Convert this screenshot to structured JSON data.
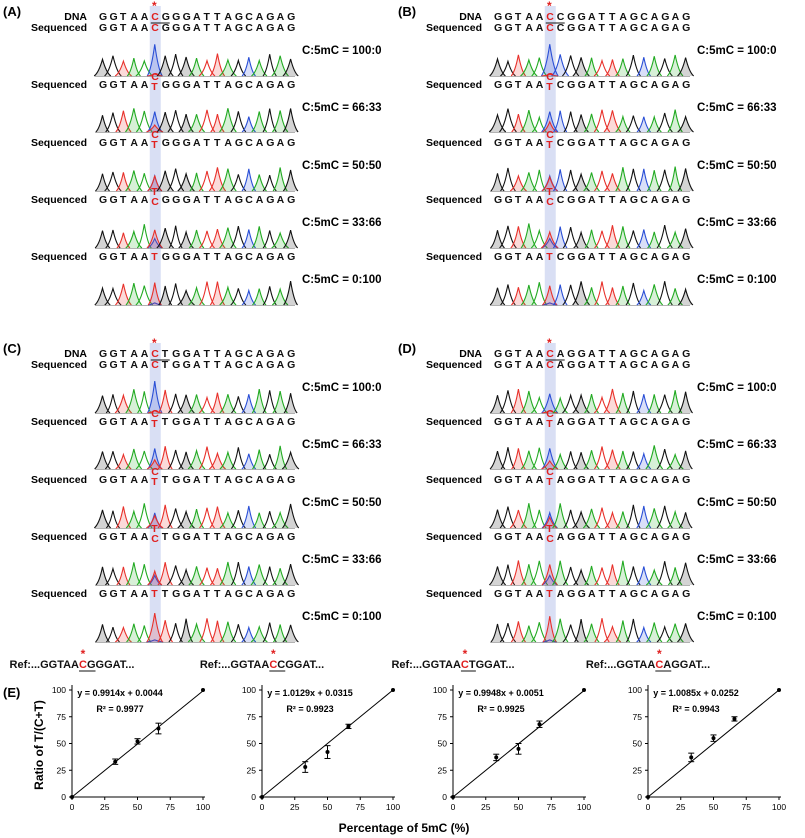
{
  "figure": {
    "panel_labels": [
      "(A)",
      "(B)",
      "(C)",
      "(D)",
      "(E)"
    ],
    "dna_label": "DNA",
    "sequenced_label": "Sequenced",
    "star": "*",
    "base_colors": {
      "A": "#22aa22",
      "C": "#2a4fd6",
      "G": "#111111",
      "T": "#e8302a"
    },
    "highlight_color": "#aab8e6",
    "red": "#e02020"
  },
  "sequencing_panels": [
    {
      "label": "(A)",
      "reference": [
        "G",
        "G",
        "T",
        "A",
        "A",
        "C",
        "G",
        "G",
        "G",
        "A",
        "T",
        "T",
        "A",
        "G",
        "C",
        "A",
        "G",
        "A",
        "G"
      ],
      "target_index": 5,
      "underline": [
        5,
        6
      ],
      "rows": [
        {
          "sequence": [
            "G",
            "G",
            "T",
            "A",
            "A",
            "C",
            "G",
            "G",
            "G",
            "A",
            "T",
            "T",
            "A",
            "G",
            "C",
            "A",
            "G",
            "A",
            "G"
          ],
          "call_top": "C",
          "call_bottom": "",
          "ratio": "C:5mC = 100:0",
          "ratio_c": 1.0
        },
        {
          "sequence": [
            "G",
            "G",
            "T",
            "A",
            "A",
            "C",
            "G",
            "G",
            "G",
            "A",
            "T",
            "T",
            "A",
            "G",
            "C",
            "A",
            "G",
            "A",
            "G"
          ],
          "call_top": "C",
          "call_bottom": "T",
          "ratio": "C:5mC = 66:33",
          "ratio_c": 0.67
        },
        {
          "sequence": [
            "G",
            "G",
            "T",
            "A",
            "A",
            "C",
            "G",
            "G",
            "G",
            "A",
            "T",
            "T",
            "A",
            "G",
            "C",
            "A",
            "G",
            "A",
            "G"
          ],
          "call_top": "C",
          "call_bottom": "T",
          "ratio": "C:5mC = 50:50",
          "ratio_c": 0.5
        },
        {
          "sequence": [
            "G",
            "G",
            "T",
            "A",
            "A",
            "C",
            "G",
            "G",
            "G",
            "A",
            "T",
            "T",
            "A",
            "G",
            "C",
            "A",
            "G",
            "A",
            "G"
          ],
          "call_top": "T",
          "call_bottom": "C",
          "ratio": "C:5mC = 33:66",
          "ratio_c": 0.33
        },
        {
          "sequence": [
            "G",
            "G",
            "T",
            "A",
            "A",
            "T",
            "G",
            "G",
            "G",
            "A",
            "T",
            "T",
            "A",
            "G",
            "C",
            "A",
            "G",
            "A",
            "G"
          ],
          "call_top": "T",
          "call_bottom": "",
          "ratio": "C:5mC = 0:100",
          "ratio_c": 0.0
        }
      ]
    },
    {
      "label": "(B)",
      "reference": [
        "G",
        "G",
        "T",
        "A",
        "A",
        "C",
        "C",
        "G",
        "G",
        "A",
        "T",
        "T",
        "A",
        "G",
        "C",
        "A",
        "G",
        "A",
        "G"
      ],
      "target_index": 5,
      "underline": [
        5,
        6
      ],
      "rows": [
        {
          "sequence": [
            "G",
            "G",
            "T",
            "A",
            "A",
            "C",
            "C",
            "G",
            "G",
            "A",
            "T",
            "T",
            "A",
            "G",
            "C",
            "A",
            "G",
            "A",
            "G"
          ],
          "call_top": "C",
          "call_bottom": "",
          "ratio": "C:5mC = 100:0",
          "ratio_c": 1.0
        },
        {
          "sequence": [
            "G",
            "G",
            "T",
            "A",
            "A",
            "C",
            "C",
            "G",
            "G",
            "A",
            "T",
            "T",
            "A",
            "G",
            "C",
            "A",
            "G",
            "A",
            "G"
          ],
          "call_top": "C",
          "call_bottom": "T",
          "ratio": "C:5mC = 66:33",
          "ratio_c": 0.67
        },
        {
          "sequence": [
            "G",
            "G",
            "T",
            "A",
            "A",
            "C",
            "C",
            "G",
            "G",
            "A",
            "T",
            "T",
            "A",
            "G",
            "C",
            "A",
            "G",
            "A",
            "G"
          ],
          "call_top": "C",
          "call_bottom": "T",
          "ratio": "C:5mC = 50:50",
          "ratio_c": 0.5
        },
        {
          "sequence": [
            "G",
            "G",
            "T",
            "A",
            "A",
            "C",
            "C",
            "G",
            "G",
            "A",
            "T",
            "T",
            "A",
            "G",
            "C",
            "A",
            "G",
            "A",
            "G"
          ],
          "call_top": "T",
          "call_bottom": "C",
          "ratio": "C:5mC = 33:66",
          "ratio_c": 0.33
        },
        {
          "sequence": [
            "G",
            "G",
            "T",
            "A",
            "A",
            "T",
            "C",
            "G",
            "G",
            "A",
            "T",
            "T",
            "A",
            "G",
            "C",
            "A",
            "G",
            "A",
            "G"
          ],
          "call_top": "T",
          "call_bottom": "",
          "ratio": "C:5mC = 0:100",
          "ratio_c": 0.0
        }
      ]
    },
    {
      "label": "(C)",
      "reference": [
        "G",
        "G",
        "T",
        "A",
        "A",
        "C",
        "T",
        "G",
        "G",
        "A",
        "T",
        "T",
        "A",
        "G",
        "C",
        "A",
        "G",
        "A",
        "G"
      ],
      "target_index": 5,
      "underline": [
        5,
        6
      ],
      "rows": [
        {
          "sequence": [
            "G",
            "G",
            "T",
            "A",
            "A",
            "C",
            "T",
            "G",
            "G",
            "A",
            "T",
            "T",
            "A",
            "G",
            "C",
            "A",
            "G",
            "A",
            "G"
          ],
          "call_top": "C",
          "call_bottom": "",
          "ratio": "C:5mC = 100:0",
          "ratio_c": 1.0
        },
        {
          "sequence": [
            "G",
            "G",
            "T",
            "A",
            "A",
            "C",
            "T",
            "G",
            "G",
            "A",
            "T",
            "T",
            "A",
            "G",
            "C",
            "A",
            "G",
            "A",
            "G"
          ],
          "call_top": "C",
          "call_bottom": "T",
          "ratio": "C:5mC = 66:33",
          "ratio_c": 0.67
        },
        {
          "sequence": [
            "G",
            "G",
            "T",
            "A",
            "A",
            "C",
            "T",
            "G",
            "G",
            "A",
            "T",
            "T",
            "A",
            "G",
            "C",
            "A",
            "G",
            "A",
            "G"
          ],
          "call_top": "C",
          "call_bottom": "T",
          "ratio": "C:5mC = 50:50",
          "ratio_c": 0.5
        },
        {
          "sequence": [
            "G",
            "G",
            "T",
            "A",
            "A",
            "C",
            "T",
            "G",
            "G",
            "A",
            "T",
            "T",
            "A",
            "G",
            "C",
            "A",
            "G",
            "A",
            "G"
          ],
          "call_top": "T",
          "call_bottom": "C",
          "ratio": "C:5mC = 33:66",
          "ratio_c": 0.33
        },
        {
          "sequence": [
            "G",
            "G",
            "T",
            "A",
            "A",
            "T",
            "T",
            "G",
            "G",
            "A",
            "T",
            "T",
            "A",
            "G",
            "C",
            "A",
            "G",
            "A",
            "G"
          ],
          "call_top": "T",
          "call_bottom": "",
          "ratio": "C:5mC = 0:100",
          "ratio_c": 0.0
        }
      ]
    },
    {
      "label": "(D)",
      "reference": [
        "G",
        "G",
        "T",
        "A",
        "A",
        "C",
        "A",
        "G",
        "G",
        "A",
        "T",
        "T",
        "A",
        "G",
        "C",
        "A",
        "G",
        "A",
        "G"
      ],
      "target_index": 5,
      "underline": [
        5,
        6
      ],
      "rows": [
        {
          "sequence": [
            "G",
            "G",
            "T",
            "A",
            "A",
            "C",
            "A",
            "G",
            "G",
            "A",
            "T",
            "T",
            "A",
            "G",
            "C",
            "A",
            "G",
            "A",
            "G"
          ],
          "call_top": "C",
          "call_bottom": "",
          "ratio": "C:5mC = 100:0",
          "ratio_c": 1.0
        },
        {
          "sequence": [
            "G",
            "G",
            "T",
            "A",
            "A",
            "C",
            "A",
            "G",
            "G",
            "A",
            "T",
            "T",
            "A",
            "G",
            "C",
            "A",
            "G",
            "A",
            "G"
          ],
          "call_top": "C",
          "call_bottom": "T",
          "ratio": "C:5mC = 66:33",
          "ratio_c": 0.67
        },
        {
          "sequence": [
            "G",
            "G",
            "T",
            "A",
            "A",
            "C",
            "A",
            "G",
            "G",
            "A",
            "T",
            "T",
            "A",
            "G",
            "C",
            "A",
            "G",
            "A",
            "G"
          ],
          "call_top": "C",
          "call_bottom": "T",
          "ratio": "C:5mC = 50:50",
          "ratio_c": 0.5
        },
        {
          "sequence": [
            "G",
            "G",
            "T",
            "A",
            "A",
            "C",
            "A",
            "G",
            "G",
            "A",
            "T",
            "T",
            "A",
            "G",
            "C",
            "A",
            "G",
            "A",
            "G"
          ],
          "call_top": "T",
          "call_bottom": "C",
          "ratio": "C:5mC = 33:66",
          "ratio_c": 0.33
        },
        {
          "sequence": [
            "G",
            "G",
            "T",
            "A",
            "A",
            "T",
            "A",
            "G",
            "G",
            "A",
            "T",
            "T",
            "A",
            "G",
            "C",
            "A",
            "G",
            "A",
            "G"
          ],
          "call_top": "T",
          "call_bottom": "",
          "ratio": "C:5mC = 0:100",
          "ratio_c": 0.0
        }
      ]
    }
  ],
  "chart_data": [
    {
      "type": "scatter",
      "ref_prefix": "Ref:...GGTAA",
      "ref_target": "C",
      "ref_next": "G",
      "ref_suffix": "GGAT...",
      "x": [
        0,
        33,
        50,
        66,
        100
      ],
      "y": [
        0,
        33,
        52,
        64,
        100
      ],
      "yerr": [
        0,
        2.5,
        2.5,
        5,
        0
      ],
      "fit": {
        "slope": 0.9914,
        "intercept": 0.0044
      },
      "equation": "y = 0.9914x + 0.0044",
      "r2": "R² = 0.9977",
      "xlabel": "Percentage of 5mC (%)",
      "ylabel": "Ratio of T/(C+T)",
      "xlim": [
        0,
        100
      ],
      "ylim": [
        0,
        100
      ],
      "xticks": [
        "0",
        "25",
        "50",
        "75",
        "100"
      ],
      "yticks": [
        "0",
        "25",
        "50",
        "75",
        "100"
      ]
    },
    {
      "type": "scatter",
      "ref_prefix": "Ref:...GGTAA",
      "ref_target": "C",
      "ref_next": "C",
      "ref_suffix": "GGAT...",
      "x": [
        0,
        33,
        50,
        66,
        100
      ],
      "y": [
        0,
        28,
        42,
        66,
        100
      ],
      "yerr": [
        0,
        5,
        6,
        2,
        0
      ],
      "fit": {
        "slope": 1.0129,
        "intercept": 0.0315
      },
      "equation": "y = 1.0129x + 0.0315",
      "r2": "R² = 0.9923",
      "xlim": [
        0,
        100
      ],
      "ylim": [
        0,
        100
      ],
      "xticks": [
        "0",
        "25",
        "50",
        "75",
        "100"
      ],
      "yticks": [
        "0",
        "25",
        "50",
        "75",
        "100"
      ]
    },
    {
      "type": "scatter",
      "ref_prefix": "Ref:...GGTAA",
      "ref_target": "C",
      "ref_next": "T",
      "ref_suffix": "GGAT...",
      "x": [
        0,
        33,
        50,
        66,
        100
      ],
      "y": [
        0,
        37,
        45,
        68,
        100
      ],
      "yerr": [
        0,
        3,
        5,
        3,
        0
      ],
      "fit": {
        "slope": 0.9948,
        "intercept": 0.0051
      },
      "equation": "y = 0.9948x + 0.0051",
      "r2": "R² = 0.9925",
      "xlim": [
        0,
        100
      ],
      "ylim": [
        0,
        100
      ],
      "xticks": [
        "0",
        "25",
        "50",
        "75",
        "100"
      ],
      "yticks": [
        "0",
        "25",
        "50",
        "75",
        "100"
      ]
    },
    {
      "type": "scatter",
      "ref_prefix": "Ref:...GGTAA",
      "ref_target": "C",
      "ref_next": "A",
      "ref_suffix": "GGAT...",
      "x": [
        0,
        33,
        50,
        66,
        100
      ],
      "y": [
        0,
        37,
        55,
        73,
        100
      ],
      "yerr": [
        0,
        4,
        3,
        2,
        0
      ],
      "fit": {
        "slope": 1.0085,
        "intercept": 0.0252
      },
      "equation": "y = 1.0085x + 0.0252",
      "r2": "R² = 0.9943",
      "xlim": [
        0,
        100
      ],
      "ylim": [
        0,
        100
      ],
      "xticks": [
        "0",
        "25",
        "50",
        "75",
        "100"
      ],
      "yticks": [
        "0",
        "25",
        "50",
        "75",
        "100"
      ]
    }
  ]
}
